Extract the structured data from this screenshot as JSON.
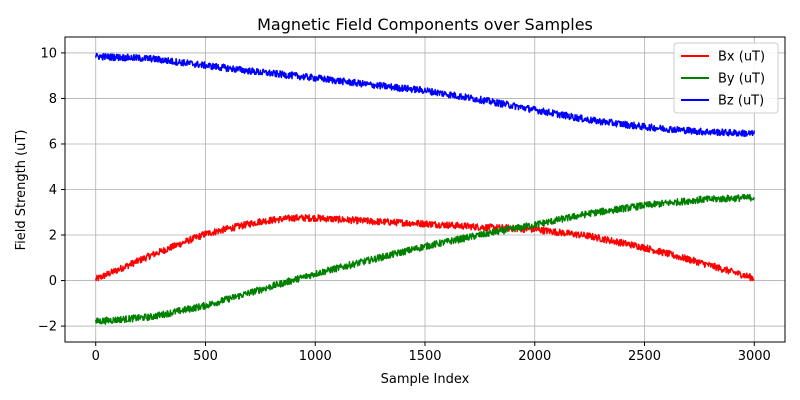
{
  "chart_data": {
    "type": "line",
    "title": "Magnetic Field Components over Samples",
    "xlabel": "Sample Index",
    "ylabel": "Field Strength (uT)",
    "xlim": [
      -140,
      3140
    ],
    "ylim": [
      -2.7,
      10.7
    ],
    "xticks": [
      0,
      500,
      1000,
      1500,
      2000,
      2500,
      3000
    ],
    "yticks": [
      -2,
      0,
      2,
      4,
      6,
      8,
      10
    ],
    "ytick_labels": [
      "−2",
      "0",
      "2",
      "4",
      "6",
      "8",
      "10"
    ],
    "grid": true,
    "legend_position": "top-right",
    "noise_amplitude": 0.15,
    "series": [
      {
        "name": "Bx (uT)",
        "color": "#ff0000",
        "x": [
          0,
          250,
          500,
          750,
          900,
          1000,
          1250,
          1500,
          1750,
          2000,
          2250,
          2500,
          2750,
          3000
        ],
        "y": [
          0.05,
          1.1,
          2.05,
          2.6,
          2.75,
          2.75,
          2.6,
          2.5,
          2.35,
          2.25,
          1.95,
          1.45,
          0.8,
          0.1
        ]
      },
      {
        "name": "By (uT)",
        "color": "#008000",
        "x": [
          0,
          250,
          500,
          750,
          1000,
          1250,
          1500,
          1750,
          2000,
          2250,
          2500,
          2750,
          3000
        ],
        "y": [
          -1.8,
          -1.6,
          -1.1,
          -0.4,
          0.3,
          0.9,
          1.5,
          2.0,
          2.45,
          2.95,
          3.3,
          3.55,
          3.65
        ]
      },
      {
        "name": "Bz (uT)",
        "color": "#0000ff",
        "x": [
          0,
          250,
          500,
          750,
          1000,
          1250,
          1500,
          1750,
          2000,
          2250,
          2500,
          2750,
          3000
        ],
        "y": [
          9.85,
          9.75,
          9.45,
          9.15,
          8.9,
          8.6,
          8.35,
          7.95,
          7.5,
          7.05,
          6.75,
          6.55,
          6.45
        ]
      }
    ]
  }
}
